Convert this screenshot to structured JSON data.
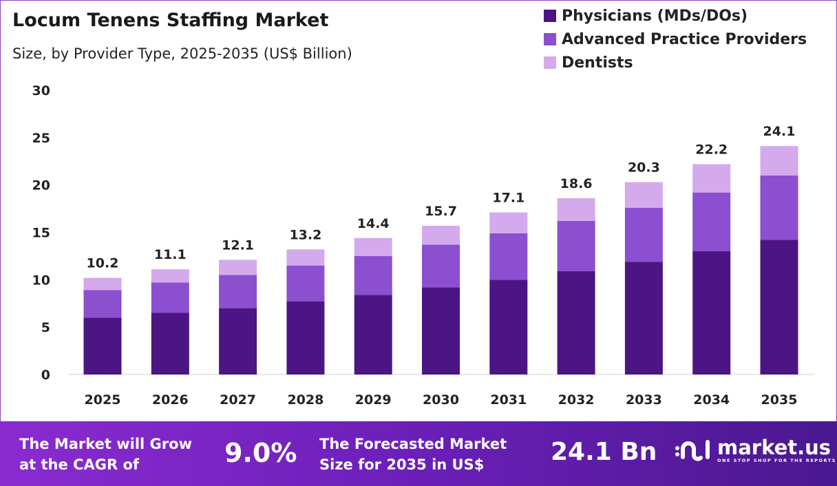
{
  "chart_data": {
    "type": "bar",
    "stacked": true,
    "title": "Locum Tenens Staffing Market",
    "subtitle": "Size, by Provider Type, 2025-2035 (US$ Billion)",
    "categories": [
      "2025",
      "2026",
      "2027",
      "2028",
      "2029",
      "2030",
      "2031",
      "2032",
      "2033",
      "2034",
      "2035"
    ],
    "series": [
      {
        "name": "Physicians (MDs/DOs)",
        "color": "#4b1684",
        "values": [
          6.0,
          6.5,
          7.0,
          7.7,
          8.4,
          9.2,
          10.0,
          10.9,
          11.9,
          13.0,
          14.2
        ]
      },
      {
        "name": "Advanced Practice Providers",
        "color": "#8b4fd0",
        "values": [
          2.9,
          3.2,
          3.5,
          3.8,
          4.1,
          4.5,
          4.9,
          5.3,
          5.7,
          6.2,
          6.8
        ]
      },
      {
        "name": "Dentists",
        "color": "#d4aaec",
        "values": [
          1.3,
          1.4,
          1.6,
          1.7,
          1.9,
          2.0,
          2.2,
          2.4,
          2.7,
          3.0,
          3.1
        ]
      }
    ],
    "totals": [
      "10.2",
      "11.1",
      "12.1",
      "13.2",
      "14.4",
      "15.7",
      "17.1",
      "18.6",
      "20.3",
      "22.2",
      "24.1"
    ],
    "ylim": [
      0,
      30
    ],
    "yticks": [
      "0",
      "5",
      "10",
      "15",
      "20",
      "25",
      "30"
    ],
    "grid": false,
    "legend": "top-right"
  },
  "footer": {
    "cagr_label": [
      "The Market will Grow",
      "at the CAGR of"
    ],
    "cagr_value": "9.0%",
    "forecast_label": [
      "The Forecasted Market",
      "Size for 2035 in US$"
    ],
    "forecast_value": "24.1 Bn",
    "logo_text": "market.us",
    "logo_tagline": "ONE STOP SHOP FOR THE REPORTS"
  }
}
